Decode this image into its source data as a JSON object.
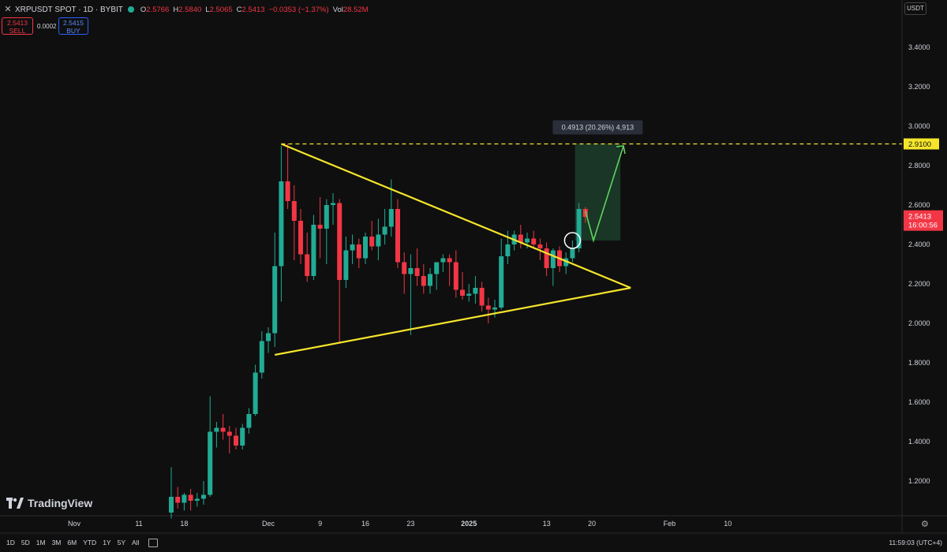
{
  "header": {
    "symbol_title": "XRPUSDT SPOT · 1D · BYBIT",
    "o_label": "O",
    "o_value": "2.5766",
    "h_label": "H",
    "h_value": "2.5840",
    "l_label": "L",
    "l_value": "2.5065",
    "c_label": "C",
    "c_value": "2.5413",
    "change": "−0.0353 (−1.37%)",
    "vol_label": "Vol",
    "vol_value": "28.52M"
  },
  "trade": {
    "sell_price": "2.5413",
    "sell_label": "SELL",
    "spread": "0.0002",
    "buy_price": "2.5415",
    "buy_label": "BUY"
  },
  "currency": "USDT",
  "brand": "TradingView",
  "timeframes": [
    "1D",
    "5D",
    "1M",
    "3M",
    "6M",
    "YTD",
    "1Y",
    "5Y",
    "All"
  ],
  "clock": "11:59:03 (UTC+4)",
  "colors": {
    "up": "#22ab94",
    "down": "#f23645",
    "pattern": "#f5e52b",
    "target_zone": "#1b3d2a",
    "arrow": "#5fd35f"
  },
  "icons": [
    "symbol-icon",
    "status-dot-icon",
    "tradingview-logo-icon",
    "calendar-icon",
    "settings-icon"
  ],
  "chart_data": {
    "type": "candlestick",
    "symbol": "XRPUSDT",
    "interval": "1D",
    "y_ticks": [
      "3.4000",
      "3.2000",
      "3.0000",
      "2.8000",
      "2.6000",
      "2.4000",
      "2.2000",
      "2.0000",
      "1.8000",
      "1.6000",
      "1.4000",
      "1.2000"
    ],
    "ylim": [
      1.05,
      3.55
    ],
    "x_ticks": [
      "Nov",
      "11",
      "18",
      "Dec",
      "9",
      "16",
      "23",
      "2025",
      "13",
      "20",
      "Feb",
      "10"
    ],
    "x_tick_dates": [
      "2024-11-01",
      "2024-11-11",
      "2024-11-18",
      "2024-12-01",
      "2024-12-09",
      "2024-12-16",
      "2024-12-23",
      "2025-01-01",
      "2025-01-13",
      "2025-01-20",
      "2025-02-01",
      "2025-02-10"
    ],
    "candles": [
      {
        "date": "2024-11-16",
        "o": 1.04,
        "h": 1.27,
        "l": 1.01,
        "c": 1.12
      },
      {
        "date": "2024-11-17",
        "o": 1.12,
        "h": 1.17,
        "l": 1.06,
        "c": 1.09
      },
      {
        "date": "2024-11-18",
        "o": 1.09,
        "h": 1.14,
        "l": 1.05,
        "c": 1.13
      },
      {
        "date": "2024-11-19",
        "o": 1.13,
        "h": 1.16,
        "l": 1.05,
        "c": 1.1
      },
      {
        "date": "2024-11-20",
        "o": 1.1,
        "h": 1.14,
        "l": 1.07,
        "c": 1.11
      },
      {
        "date": "2024-11-21",
        "o": 1.11,
        "h": 1.2,
        "l": 1.08,
        "c": 1.13
      },
      {
        "date": "2024-11-22",
        "o": 1.13,
        "h": 1.63,
        "l": 1.12,
        "c": 1.45
      },
      {
        "date": "2024-11-23",
        "o": 1.45,
        "h": 1.5,
        "l": 1.37,
        "c": 1.47
      },
      {
        "date": "2024-11-24",
        "o": 1.47,
        "h": 1.54,
        "l": 1.41,
        "c": 1.45
      },
      {
        "date": "2024-11-25",
        "o": 1.45,
        "h": 1.48,
        "l": 1.34,
        "c": 1.43
      },
      {
        "date": "2024-11-26",
        "o": 1.43,
        "h": 1.47,
        "l": 1.36,
        "c": 1.38
      },
      {
        "date": "2024-11-27",
        "o": 1.38,
        "h": 1.49,
        "l": 1.36,
        "c": 1.47
      },
      {
        "date": "2024-11-28",
        "o": 1.47,
        "h": 1.57,
        "l": 1.44,
        "c": 1.54
      },
      {
        "date": "2024-11-29",
        "o": 1.54,
        "h": 1.79,
        "l": 1.53,
        "c": 1.75
      },
      {
        "date": "2024-11-30",
        "o": 1.75,
        "h": 1.96,
        "l": 1.72,
        "c": 1.91
      },
      {
        "date": "2024-12-01",
        "o": 1.91,
        "h": 1.98,
        "l": 1.85,
        "c": 1.95
      },
      {
        "date": "2024-12-02",
        "o": 1.95,
        "h": 2.46,
        "l": 1.88,
        "c": 2.29
      },
      {
        "date": "2024-12-03",
        "o": 2.29,
        "h": 2.9,
        "l": 2.11,
        "c": 2.72
      },
      {
        "date": "2024-12-04",
        "o": 2.72,
        "h": 2.91,
        "l": 2.58,
        "c": 2.62
      },
      {
        "date": "2024-12-05",
        "o": 2.62,
        "h": 2.7,
        "l": 2.32,
        "c": 2.52
      },
      {
        "date": "2024-12-06",
        "o": 2.52,
        "h": 2.58,
        "l": 2.3,
        "c": 2.35
      },
      {
        "date": "2024-12-07",
        "o": 2.35,
        "h": 2.46,
        "l": 2.21,
        "c": 2.24
      },
      {
        "date": "2024-12-08",
        "o": 2.24,
        "h": 2.55,
        "l": 2.22,
        "c": 2.5
      },
      {
        "date": "2024-12-09",
        "o": 2.5,
        "h": 2.64,
        "l": 2.33,
        "c": 2.48
      },
      {
        "date": "2024-12-10",
        "o": 2.48,
        "h": 2.63,
        "l": 2.3,
        "c": 2.6
      },
      {
        "date": "2024-12-11",
        "o": 2.6,
        "h": 2.66,
        "l": 2.5,
        "c": 2.61
      },
      {
        "date": "2024-12-12",
        "o": 2.61,
        "h": 2.63,
        "l": 1.9,
        "c": 2.22
      },
      {
        "date": "2024-12-13",
        "o": 2.22,
        "h": 2.44,
        "l": 2.18,
        "c": 2.37
      },
      {
        "date": "2024-12-14",
        "o": 2.37,
        "h": 2.45,
        "l": 2.3,
        "c": 2.4
      },
      {
        "date": "2024-12-15",
        "o": 2.4,
        "h": 2.43,
        "l": 2.28,
        "c": 2.33
      },
      {
        "date": "2024-12-16",
        "o": 2.33,
        "h": 2.46,
        "l": 2.3,
        "c": 2.44
      },
      {
        "date": "2024-12-17",
        "o": 2.44,
        "h": 2.52,
        "l": 2.37,
        "c": 2.39
      },
      {
        "date": "2024-12-18",
        "o": 2.39,
        "h": 2.53,
        "l": 2.32,
        "c": 2.45
      },
      {
        "date": "2024-12-19",
        "o": 2.45,
        "h": 2.58,
        "l": 2.4,
        "c": 2.49
      },
      {
        "date": "2024-12-20",
        "o": 2.49,
        "h": 2.73,
        "l": 2.44,
        "c": 2.58
      },
      {
        "date": "2024-12-21",
        "o": 2.58,
        "h": 2.63,
        "l": 2.28,
        "c": 2.31
      },
      {
        "date": "2024-12-22",
        "o": 2.31,
        "h": 2.36,
        "l": 2.15,
        "c": 2.25
      },
      {
        "date": "2024-12-23",
        "o": 2.25,
        "h": 2.35,
        "l": 1.94,
        "c": 2.28
      },
      {
        "date": "2024-12-24",
        "o": 2.28,
        "h": 2.38,
        "l": 2.19,
        "c": 2.24
      },
      {
        "date": "2024-12-25",
        "o": 2.24,
        "h": 2.3,
        "l": 2.15,
        "c": 2.19
      },
      {
        "date": "2024-12-26",
        "o": 2.19,
        "h": 2.28,
        "l": 2.15,
        "c": 2.25
      },
      {
        "date": "2024-12-27",
        "o": 2.25,
        "h": 2.31,
        "l": 2.17,
        "c": 2.31
      },
      {
        "date": "2024-12-28",
        "o": 2.31,
        "h": 2.35,
        "l": 2.26,
        "c": 2.33
      },
      {
        "date": "2024-12-29",
        "o": 2.33,
        "h": 2.35,
        "l": 2.19,
        "c": 2.31
      },
      {
        "date": "2024-12-30",
        "o": 2.31,
        "h": 2.37,
        "l": 2.13,
        "c": 2.17
      },
      {
        "date": "2024-12-31",
        "o": 2.17,
        "h": 2.26,
        "l": 2.12,
        "c": 2.14
      },
      {
        "date": "2025-01-01",
        "o": 2.14,
        "h": 2.2,
        "l": 2.11,
        "c": 2.15
      },
      {
        "date": "2025-01-02",
        "o": 2.15,
        "h": 2.24,
        "l": 2.1,
        "c": 2.18
      },
      {
        "date": "2025-01-03",
        "o": 2.18,
        "h": 2.21,
        "l": 2.06,
        "c": 2.09
      },
      {
        "date": "2025-01-04",
        "o": 2.09,
        "h": 2.13,
        "l": 2.0,
        "c": 2.07
      },
      {
        "date": "2025-01-05",
        "o": 2.07,
        "h": 2.12,
        "l": 2.03,
        "c": 2.08
      },
      {
        "date": "2025-01-06",
        "o": 2.08,
        "h": 2.43,
        "l": 2.07,
        "c": 2.34
      },
      {
        "date": "2025-01-07",
        "o": 2.34,
        "h": 2.47,
        "l": 2.3,
        "c": 2.4
      },
      {
        "date": "2025-01-08",
        "o": 2.4,
        "h": 2.47,
        "l": 2.37,
        "c": 2.45
      },
      {
        "date": "2025-01-09",
        "o": 2.45,
        "h": 2.5,
        "l": 2.38,
        "c": 2.41
      },
      {
        "date": "2025-01-10",
        "o": 2.41,
        "h": 2.46,
        "l": 2.38,
        "c": 2.43
      },
      {
        "date": "2025-01-11",
        "o": 2.43,
        "h": 2.47,
        "l": 2.38,
        "c": 2.4
      },
      {
        "date": "2025-01-12",
        "o": 2.4,
        "h": 2.43,
        "l": 2.32,
        "c": 2.38
      },
      {
        "date": "2025-01-13",
        "o": 2.38,
        "h": 2.41,
        "l": 2.24,
        "c": 2.28
      },
      {
        "date": "2025-01-14",
        "o": 2.28,
        "h": 2.38,
        "l": 2.19,
        "c": 2.37
      },
      {
        "date": "2025-01-15",
        "o": 2.37,
        "h": 2.39,
        "l": 2.26,
        "c": 2.29
      },
      {
        "date": "2025-01-16",
        "o": 2.29,
        "h": 2.36,
        "l": 2.25,
        "c": 2.33
      },
      {
        "date": "2025-01-17",
        "o": 2.33,
        "h": 2.42,
        "l": 2.31,
        "c": 2.38
      },
      {
        "date": "2025-01-18",
        "o": 2.38,
        "h": 2.61,
        "l": 2.36,
        "c": 2.58
      },
      {
        "date": "2025-01-19",
        "o": 2.58,
        "h": 2.59,
        "l": 2.51,
        "c": 2.54
      }
    ],
    "pattern": {
      "name": "symmetrical triangle",
      "upper_line": [
        {
          "date": "2024-12-03",
          "price": 2.91
        },
        {
          "date": "2025-01-26",
          "price": 2.18
        }
      ],
      "lower_line": [
        {
          "date": "2024-12-02",
          "price": 1.84
        },
        {
          "date": "2025-01-26",
          "price": 2.18
        }
      ]
    },
    "target_price": "2.9100",
    "target_box": {
      "label": "0.4913 (20.26%) 4,913",
      "from": 2.42,
      "to": 2.91
    },
    "last_price": "2.5413",
    "countdown": "16:00:56"
  }
}
